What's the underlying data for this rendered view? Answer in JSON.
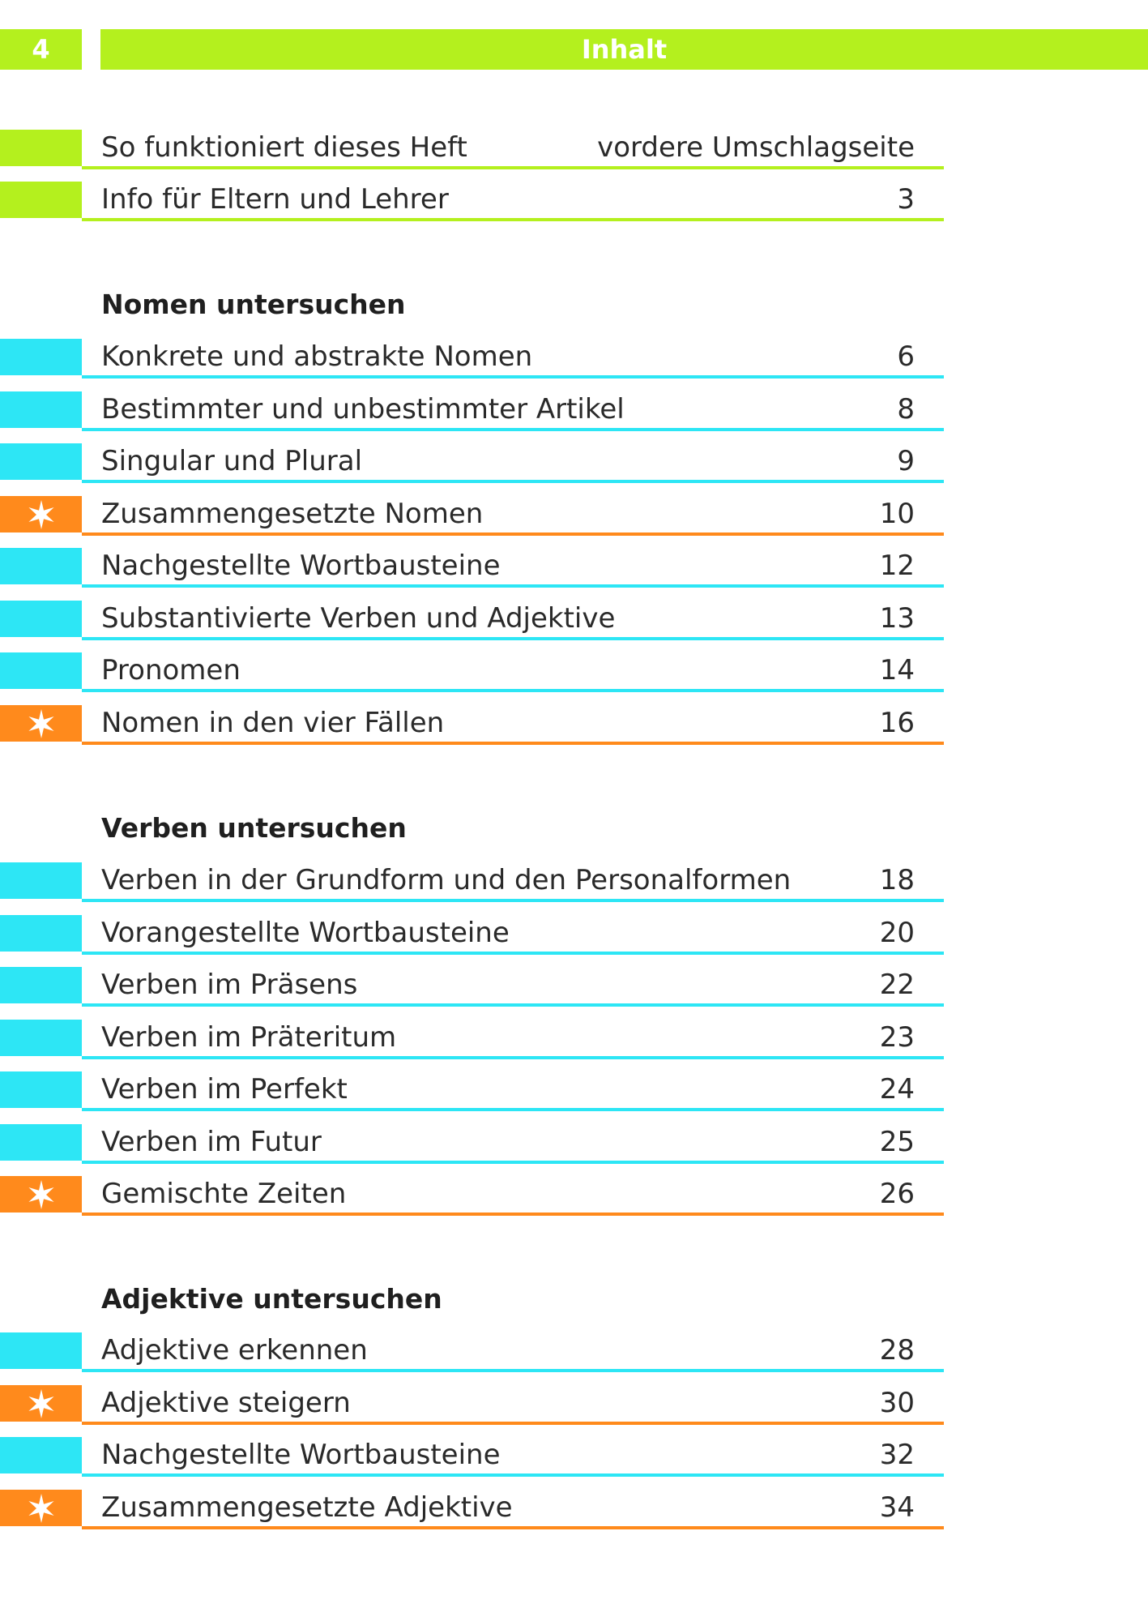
{
  "header": {
    "page_number": "4",
    "title": "Inhalt"
  },
  "intro_rows": [
    {
      "label": "So funktioniert dieses Heft",
      "page": "vordere Umschlagseite",
      "marker": "green"
    },
    {
      "label": "Info für Eltern und Lehrer",
      "page": "3",
      "marker": "green"
    }
  ],
  "sections": [
    {
      "heading": "Nomen untersuchen",
      "rows": [
        {
          "label": "Konkrete und abstrakte Nomen",
          "page": "6",
          "marker": "cyan"
        },
        {
          "label": "Bestimmter und unbestimmter Artikel",
          "page": "8",
          "marker": "cyan"
        },
        {
          "label": "Singular und Plural",
          "page": "9",
          "marker": "cyan"
        },
        {
          "label": "Zusammengesetzte Nomen",
          "page": "10",
          "marker": "orange-star"
        },
        {
          "label": "Nachgestellte Wortbausteine",
          "page": "12",
          "marker": "cyan"
        },
        {
          "label": "Substantivierte Verben und Adjektive",
          "page": "13",
          "marker": "cyan"
        },
        {
          "label": "Pronomen",
          "page": "14",
          "marker": "cyan"
        },
        {
          "label": "Nomen in den vier Fällen",
          "page": "16",
          "marker": "orange-star"
        }
      ]
    },
    {
      "heading": "Verben untersuchen",
      "rows": [
        {
          "label": "Verben in der Grundform und den Personalformen",
          "page": "18",
          "marker": "cyan"
        },
        {
          "label": "Vorangestellte Wortbausteine",
          "page": "20",
          "marker": "cyan"
        },
        {
          "label": "Verben im Präsens",
          "page": "22",
          "marker": "cyan"
        },
        {
          "label": "Verben im Präteritum",
          "page": "23",
          "marker": "cyan"
        },
        {
          "label": "Verben im Perfekt",
          "page": "24",
          "marker": "cyan"
        },
        {
          "label": "Verben im Futur",
          "page": "25",
          "marker": "cyan"
        },
        {
          "label": "Gemischte Zeiten",
          "page": "26",
          "marker": "orange-star"
        }
      ]
    },
    {
      "heading": "Adjektive untersuchen",
      "rows": [
        {
          "label": "Adjektive erkennen",
          "page": "28",
          "marker": "cyan"
        },
        {
          "label": "Adjektive steigern",
          "page": "30",
          "marker": "orange-star"
        },
        {
          "label": "Nachgestellte Wortbausteine",
          "page": "32",
          "marker": "cyan"
        },
        {
          "label": "Zusammengesetzte Adjektive",
          "page": "34",
          "marker": "orange-star"
        }
      ]
    }
  ],
  "colors": {
    "green": "#b4f01e",
    "cyan": "#2de6f5",
    "orange": "#ff8a1c"
  }
}
